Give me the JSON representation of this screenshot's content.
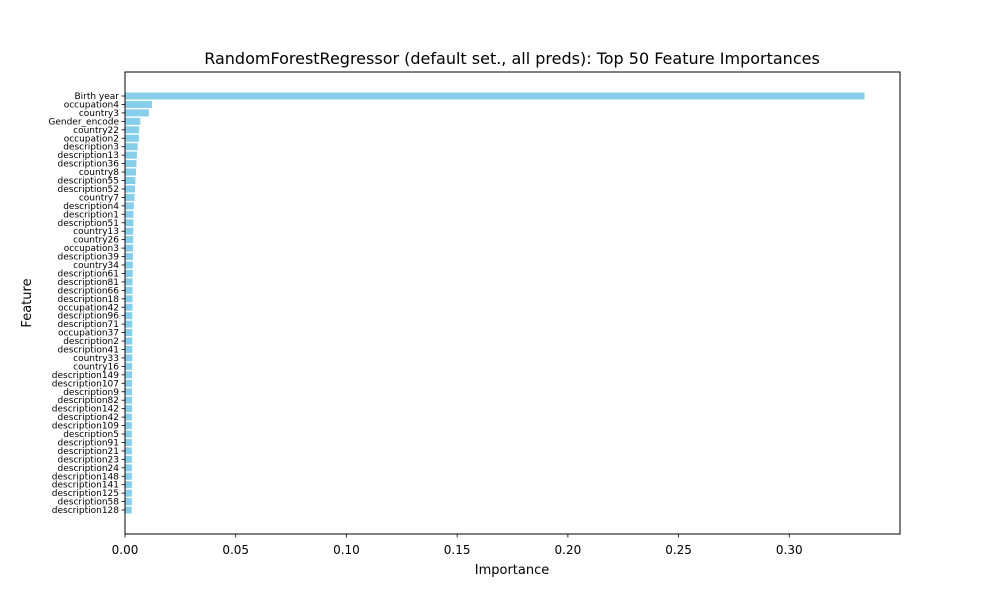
{
  "chart_data": {
    "type": "bar",
    "orientation": "horizontal",
    "title": "RandomForestRegressor (default set., all preds): Top 50 Feature Importances",
    "xlabel": "Importance",
    "ylabel": "Feature",
    "xlim": [
      0,
      0.35
    ],
    "xticks": [
      "0.00",
      "0.05",
      "0.10",
      "0.15",
      "0.20",
      "0.25",
      "0.30"
    ],
    "xtick_values": [
      0,
      0.05,
      0.1,
      0.15,
      0.2,
      0.25,
      0.3
    ],
    "bar_color": "#87ceeb",
    "grid": false,
    "categories": [
      "Birth year",
      "occupation4",
      "country3",
      "Gender_encode",
      "country22",
      "occupation2",
      "description3",
      "description13",
      "description36",
      "country8",
      "description55",
      "description52",
      "country7",
      "description4",
      "description1",
      "description51",
      "country13",
      "country26",
      "occupation3",
      "description39",
      "country34",
      "description61",
      "description81",
      "description66",
      "description18",
      "occupation42",
      "description96",
      "description71",
      "occupation37",
      "description2",
      "description41",
      "country33",
      "country16",
      "description149",
      "description107",
      "description9",
      "description82",
      "description142",
      "description42",
      "description109",
      "description5",
      "description91",
      "description21",
      "description23",
      "description24",
      "description148",
      "description141",
      "description125",
      "description58",
      "description128"
    ],
    "values": [
      0.334,
      0.0122,
      0.0108,
      0.0069,
      0.0064,
      0.0063,
      0.0057,
      0.0054,
      0.0052,
      0.005,
      0.0047,
      0.0045,
      0.0043,
      0.004,
      0.0038,
      0.0038,
      0.0037,
      0.0037,
      0.0036,
      0.0036,
      0.0035,
      0.0035,
      0.0034,
      0.0034,
      0.0034,
      0.0034,
      0.0033,
      0.0033,
      0.0033,
      0.0033,
      0.0033,
      0.0033,
      0.0032,
      0.0032,
      0.0032,
      0.0032,
      0.0032,
      0.0032,
      0.0031,
      0.0031,
      0.0031,
      0.0031,
      0.0031,
      0.0031,
      0.0031,
      0.0031,
      0.0031,
      0.0031,
      0.0031,
      0.003
    ]
  }
}
